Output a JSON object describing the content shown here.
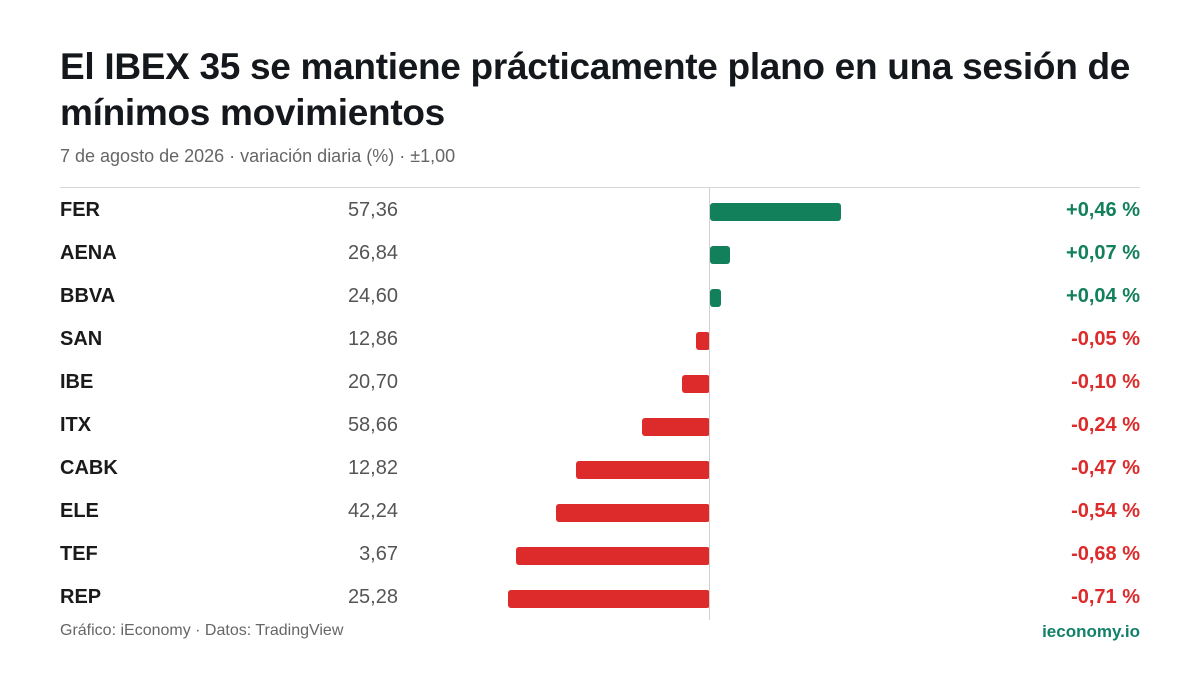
{
  "title": "El IBEX 35 se mantiene prácticamente plano en una sesión de mínimos movimientos",
  "subtitle": "7 de agosto de 2026 · variación diaria (%) · ±1,00",
  "footer": {
    "credit": "Gráfico: iEconomy · Datos: TradingView",
    "brand": "ieconomy.io"
  },
  "colors": {
    "positive": "#12805a",
    "negative": "#dd2a2a",
    "brand": "#12806a"
  },
  "chart_data": {
    "type": "bar",
    "orientation": "horizontal",
    "scale_limit": 1.0,
    "categories": [
      "FER",
      "AENA",
      "BBVA",
      "SAN",
      "IBE",
      "ITX",
      "CABK",
      "ELE",
      "TEF",
      "REP"
    ],
    "prices": [
      "57,36",
      "26,84",
      "24,60",
      "12,86",
      "20,70",
      "58,66",
      "12,82",
      "42,24",
      "3,67",
      "25,28"
    ],
    "values": [
      0.46,
      0.07,
      0.04,
      -0.05,
      -0.1,
      -0.24,
      -0.47,
      -0.54,
      -0.68,
      -0.71
    ],
    "labels": [
      "+0,46 %",
      "+0,07 %",
      "+0,04 %",
      "-0,05 %",
      "-0,10 %",
      "-0,24 %",
      "-0,47 %",
      "-0,54 %",
      "-0,68 %",
      "-0,71 %"
    ]
  }
}
